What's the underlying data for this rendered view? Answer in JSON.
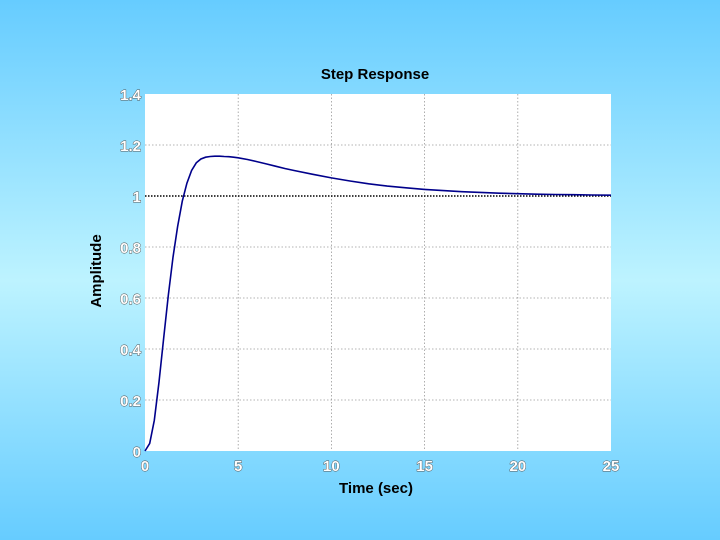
{
  "chart_data": {
    "type": "line",
    "title": "Step Response",
    "xlabel": "Time (sec)",
    "ylabel": "Amplitude",
    "xlim": [
      0,
      25
    ],
    "ylim": [
      0,
      1.4
    ],
    "xticks": [
      "0",
      "5",
      "10",
      "15",
      "20",
      "25"
    ],
    "yticks": [
      "0",
      "0.2",
      "0.4",
      "0.6",
      "0.8",
      "1",
      "1.2",
      "1.4"
    ],
    "grid": true,
    "reference_line": {
      "y": 1,
      "style": "dotted",
      "color": "#000000"
    },
    "series": [
      {
        "color": "#00008b",
        "x": [
          0,
          0.25,
          0.5,
          0.75,
          1,
          1.25,
          1.5,
          1.75,
          2,
          2.25,
          2.5,
          2.75,
          3,
          3.25,
          3.5,
          3.75,
          4,
          4.25,
          4.5,
          4.75,
          5,
          5.5,
          6,
          6.5,
          7,
          7.5,
          8,
          9,
          10,
          11,
          12,
          13,
          14,
          15,
          16,
          17,
          18,
          19,
          20,
          21,
          22,
          23,
          24,
          25
        ],
        "y": [
          0,
          0.03,
          0.12,
          0.27,
          0.44,
          0.61,
          0.76,
          0.88,
          0.98,
          1.05,
          1.1,
          1.13,
          1.145,
          1.152,
          1.155,
          1.156,
          1.156,
          1.155,
          1.154,
          1.152,
          1.15,
          1.143,
          1.135,
          1.126,
          1.117,
          1.108,
          1.1,
          1.085,
          1.071,
          1.059,
          1.048,
          1.039,
          1.032,
          1.026,
          1.021,
          1.017,
          1.014,
          1.011,
          1.009,
          1.007,
          1.006,
          1.005,
          1.004,
          1.003
        ]
      }
    ]
  }
}
